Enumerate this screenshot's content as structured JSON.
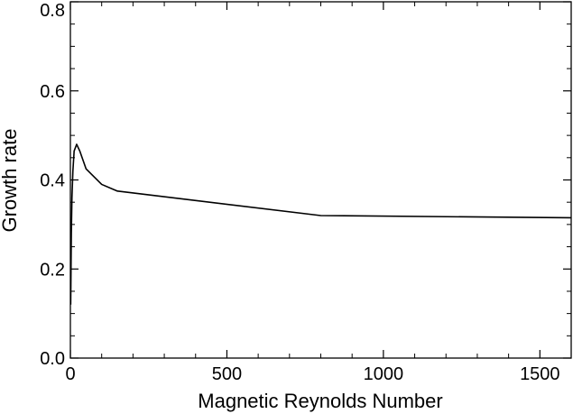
{
  "chart_data": {
    "type": "line",
    "title": "",
    "xlabel": "Magnetic Reynolds Number",
    "ylabel": "Growth rate",
    "xlim": [
      0,
      1600
    ],
    "ylim": [
      0,
      0.8
    ],
    "xticks": [
      0,
      500,
      1000,
      1500
    ],
    "xtick_labels": [
      "0",
      "500",
      "1000",
      "1500"
    ],
    "yticks": [
      0,
      0.2,
      0.4,
      0.6,
      0.8
    ],
    "ytick_labels": [
      "0.0",
      "0.2",
      "0.4",
      "0.6",
      "0.8"
    ],
    "grid": false,
    "legend": "none",
    "line_color": "#000000",
    "series": [
      {
        "x": [
          1,
          3,
          5,
          8,
          12,
          20,
          30,
          50,
          100,
          150,
          800,
          1600
        ],
        "y": [
          0.12,
          0.28,
          0.36,
          0.42,
          0.465,
          0.48,
          0.465,
          0.425,
          0.39,
          0.375,
          0.32,
          0.315
        ]
      }
    ]
  }
}
